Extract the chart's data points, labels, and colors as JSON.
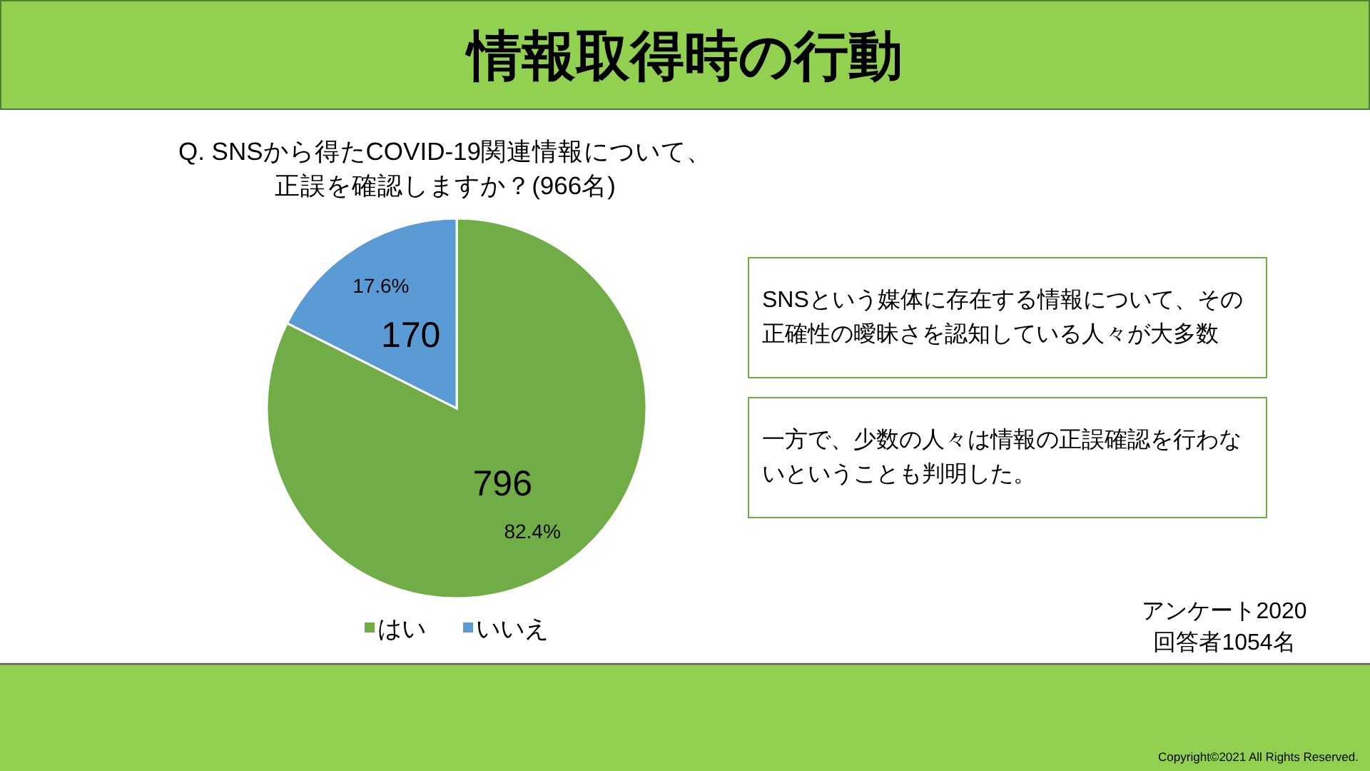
{
  "chart_data": {
    "type": "pie",
    "title": "情報取得時の行動",
    "subtitle": "Q. SNSから得たCOVID-19関連情報について、正誤を確認しますか？(966名)",
    "categories": [
      "はい",
      "いいえ"
    ],
    "values": [
      796,
      170
    ],
    "colors": [
      "#70ad47",
      "#5b9bd5"
    ],
    "data_labels": true,
    "legend": "bottom",
    "annotations": [
      {
        "text": "82.4%",
        "x": "はい"
      },
      {
        "text": "17.6%",
        "x": "いいえ"
      },
      "SNSという媒体に存在する情報について、その正確性の曖昧さを認知している人々が大多数",
      "一方で、少数の人々は情報の正誤確認を行わないということも判明した。",
      "アンケート2020",
      "回答者1054名",
      "Copyright©2021 All Rights Reserved."
    ]
  }
}
